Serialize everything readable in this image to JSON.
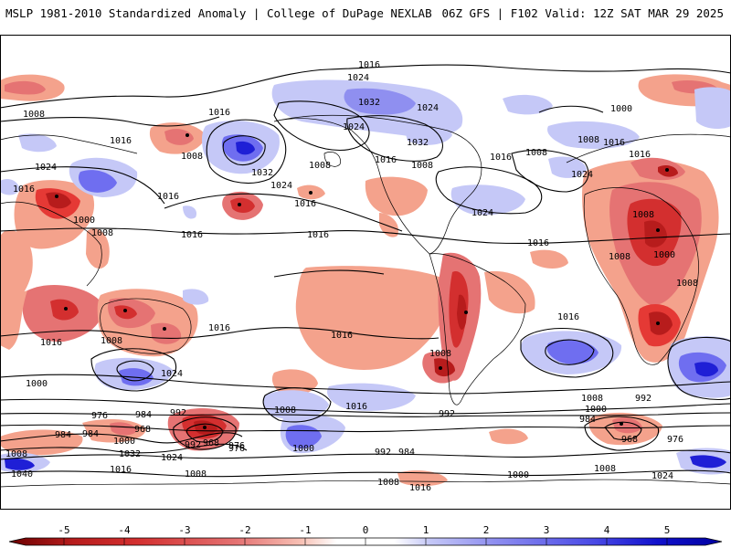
{
  "header": {
    "left_title": "MSLP 1981-2010 Standardized Anomaly | College of DuPage NEXLAB",
    "right_title": "06Z GFS | F102 Valid: 12Z SAT MAR 29 2025"
  },
  "map": {
    "isobar_labels": [
      "1016",
      "1024",
      "1008",
      "1016",
      "1016",
      "1008",
      "1032",
      "1024",
      "1032",
      "1016",
      "1024",
      "1008",
      "1000",
      "1008",
      "1016",
      "1032",
      "1024",
      "1008",
      "1016",
      "1016",
      "1008",
      "1016",
      "1024",
      "1016",
      "1024",
      "1000",
      "1008",
      "1008",
      "1016",
      "1016",
      "1016",
      "1008",
      "1016",
      "1024",
      "1000",
      "1008",
      "1016",
      "1016",
      "1024",
      "1008",
      "1016",
      "1016",
      "1008",
      "1000",
      "992",
      "984",
      "976",
      "984",
      "992",
      "968",
      "976",
      "1000",
      "1032",
      "1024",
      "992",
      "968",
      "984",
      "976",
      "1008",
      "1040",
      "1016",
      "1008",
      "1000",
      "992",
      "984",
      "1016",
      "1008",
      "1016",
      "1008",
      "1000",
      "992",
      "984",
      "968",
      "1008",
      "976",
      "1008",
      "1024",
      "1000"
    ],
    "colors": {
      "strong_neg": "#b71c1c",
      "mid_neg": "#e53935",
      "weak_neg": "#f4a28c",
      "weak_pos": "#b9bcf5",
      "mid_pos": "#6f6ef0",
      "strong_pos": "#1f1fd6",
      "coast": "#000000",
      "isobar": "#000000"
    }
  },
  "colorbar": {
    "tick_labels": [
      "-5",
      "-4",
      "-3",
      "-2",
      "-1",
      "0",
      "1",
      "2",
      "3",
      "4",
      "5"
    ],
    "stops": [
      "#6b0000",
      "#b71c1c",
      "#d32f2f",
      "#e57373",
      "#f8c1b5",
      "#ffffff",
      "#ffffff",
      "#c5c8f7",
      "#8f8ff0",
      "#4a4ae6",
      "#1010cc",
      "#0000a0"
    ]
  }
}
